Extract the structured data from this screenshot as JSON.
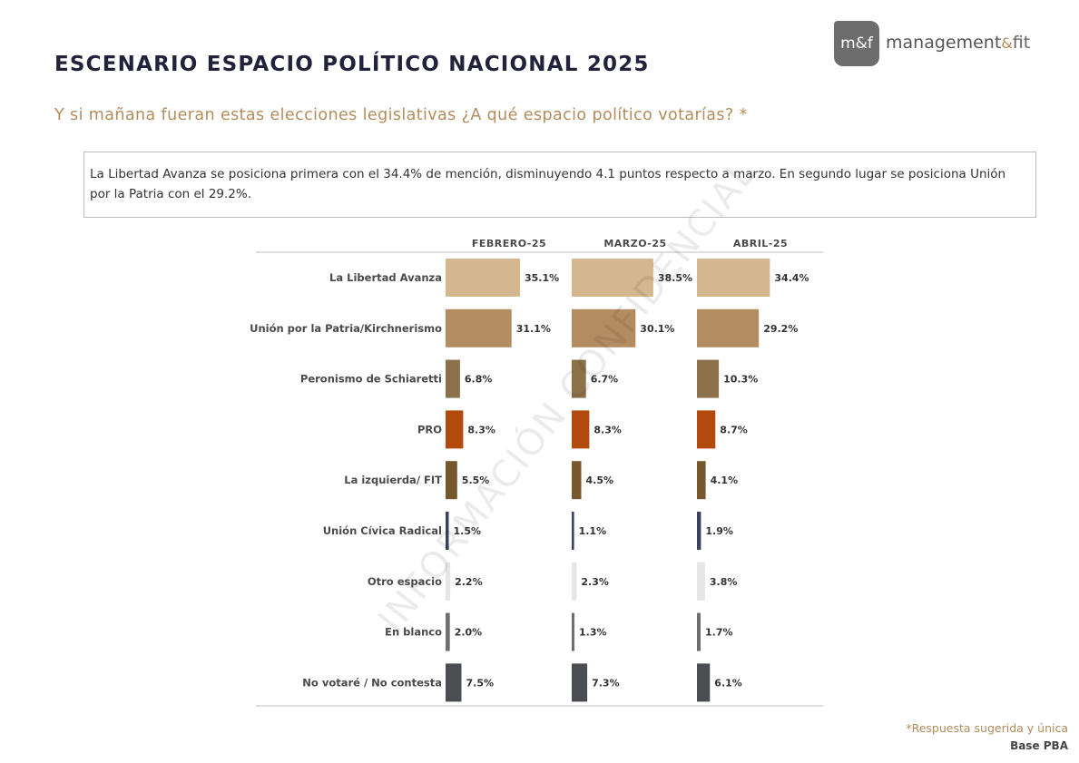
{
  "header": {
    "title": "ESCENARIO ESPACIO POLÍTICO NACIONAL 2025",
    "subtitle": "Y si mañana fueran estas elecciones legislativas ¿A qué espacio político votarías?  *",
    "summary": "La Libertad Avanza se posiciona primera con el 34.4% de mención, disminuyendo 4.1 puntos respecto a marzo. En segundo lugar se posiciona Unión por la Patria con el 29.2%."
  },
  "logo": {
    "badge": "m&f",
    "text_main": "management",
    "text_amp": "&",
    "text_fit": "fit"
  },
  "watermark": "INFORMACIÓN CONFIDENCIAL",
  "footer": {
    "note": "*Respuesta sugerida y única",
    "base": "Base PBA"
  },
  "chart_data": {
    "type": "bar",
    "categories": [
      "La Libertad Avanza",
      "Unión por la Patria/Kirchnerismo",
      "Peronismo de Schiaretti",
      "PRO",
      "La izquierda/ FIT",
      "Unión Cívica Radical",
      "Otro espacio",
      "En blanco",
      "No votaré / No contesta"
    ],
    "category_colors": [
      "#d4b78f",
      "#b38c62",
      "#8c7049",
      "#b34a0d",
      "#76582c",
      "#3a4260",
      "#e6e6e6",
      "#6e6e6e",
      "#4a4d52"
    ],
    "series": [
      {
        "name": "FEBRERO-25",
        "values": [
          35.1,
          31.1,
          6.8,
          8.3,
          5.5,
          1.5,
          2.2,
          2.0,
          7.5
        ],
        "labels": [
          "35.1%",
          "31.1%",
          "6.8%",
          "8.3%",
          "5.5%",
          "1.5%",
          "2.2%",
          "2.0%",
          "7.5%"
        ]
      },
      {
        "name": "MARZO-25",
        "values": [
          38.5,
          30.1,
          6.7,
          8.3,
          4.5,
          1.1,
          2.3,
          1.3,
          7.3
        ],
        "labels": [
          "38.5%",
          "30.1%",
          "6.7%",
          "8.3%",
          "4.5%",
          "1.1%",
          "2.3%",
          "1.3%",
          "7.3%"
        ]
      },
      {
        "name": "ABRIL-25",
        "values": [
          34.4,
          29.2,
          10.3,
          8.7,
          4.1,
          1.9,
          3.8,
          1.7,
          6.1
        ],
        "labels": [
          "34.4%",
          "29.2%",
          "10.3%",
          "8.7%",
          "4.1%",
          "1.9%",
          "3.8%",
          "1.7%",
          "6.1%"
        ]
      }
    ],
    "ylim": [
      0,
      45
    ]
  }
}
